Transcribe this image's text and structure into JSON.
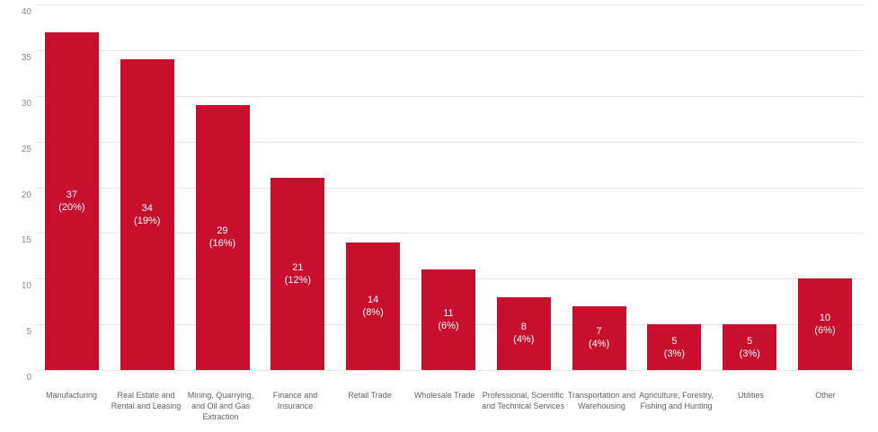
{
  "chart_data": {
    "type": "bar",
    "title": "",
    "xlabel": "",
    "ylabel": "",
    "ylim": [
      0,
      40
    ],
    "yticks": [
      0,
      5,
      10,
      15,
      20,
      25,
      30,
      35,
      40
    ],
    "grid": "horizontal",
    "legend": "none",
    "orientation": "vertical",
    "categories": [
      "Manufacturing",
      "Real Estate and Rental and Leasing",
      "Mining, Quarrying, and Oil and Gas Extraction",
      "Finance and Insurance",
      "Retail Trade",
      "Wholesale Trade",
      "Professional, Scientific and Technical Services",
      "Transportation and Warehousing",
      "Agriculture, Forestry, Fishing and Hunting",
      "Utilities",
      "Other"
    ],
    "category_lines": [
      [
        "Manufacturing"
      ],
      [
        "Real Estate and",
        "Rental and Leasing"
      ],
      [
        "Mining, Quarrying,",
        "and Oil and Gas",
        "Extraction"
      ],
      [
        "Finance and",
        "Insurance"
      ],
      [
        "Retail Trade"
      ],
      [
        "Wholesale Trade"
      ],
      [
        "Professional, Scientific",
        "and Technical Services"
      ],
      [
        "Transportation and",
        "Warehousing"
      ],
      [
        "Agriculture, Forestry,",
        "Fishing and Hunting"
      ],
      [
        "Utilities"
      ],
      [
        "Other"
      ]
    ],
    "values": [
      37,
      34,
      29,
      21,
      14,
      11,
      8,
      7,
      5,
      5,
      10
    ],
    "value_labels": [
      "37",
      "34",
      "29",
      "21",
      "14",
      "11",
      "8",
      "7",
      "5",
      "5",
      "10"
    ],
    "percent_labels": [
      "(20%)",
      "(19%)",
      "(16%)",
      "(12%)",
      "(8%)",
      "(6%)",
      "(4%)",
      "(4%)",
      "(3%)",
      "(3%)",
      "(6%)"
    ]
  },
  "colors": {
    "bar": "#c8102e",
    "bar_label_text": "#ffffff",
    "gridline": "#e6e6e6",
    "ytick_text": "#8c8c8c",
    "xlabel_text": "#5f5f5f",
    "background": "#ffffff"
  }
}
